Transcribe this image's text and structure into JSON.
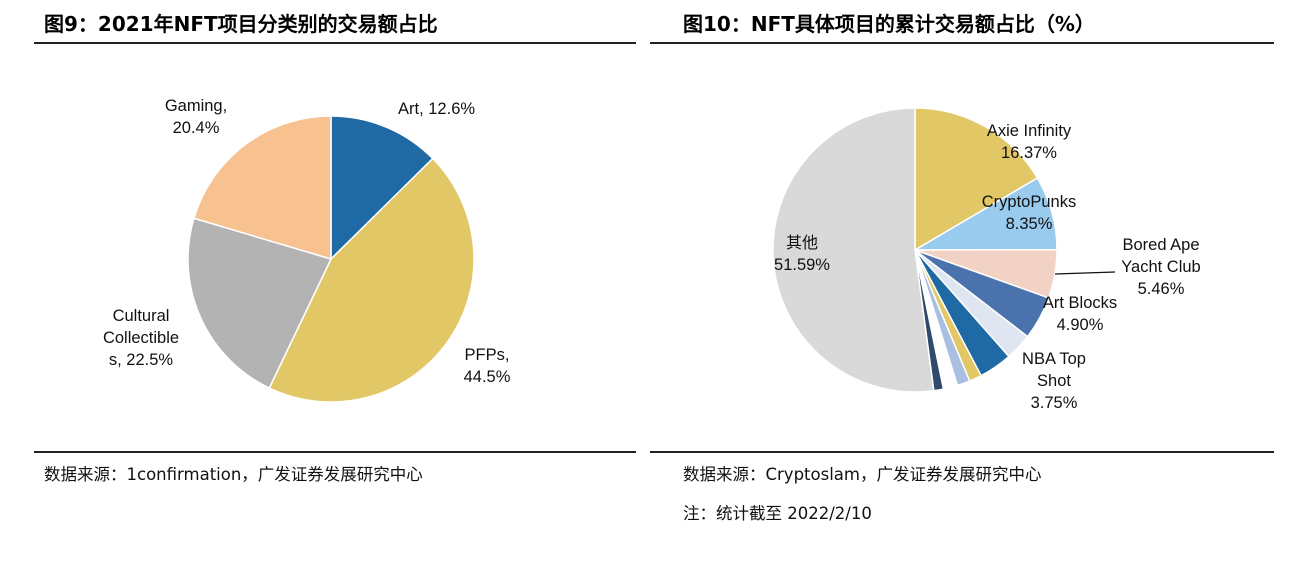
{
  "charts": [
    {
      "title": "图9：2021年NFT项目分类别的交易额占比",
      "source": "数据来源：1confirmation，广发证券发展研究中心"
    },
    {
      "title": "图10：NFT具体项目的累计交易额占比（%）",
      "source": "数据来源：Cryptoslam，广发证券发展研究中心",
      "note": "注：统计截至 2022/2/10"
    }
  ],
  "chart_data": [
    {
      "type": "pie",
      "title": "图9：2021年NFT项目分类别的交易额占比",
      "start_angle_deg": 0,
      "direction": "clockwise",
      "slices": [
        {
          "label_lines": [
            "Art, 12.6%"
          ],
          "value": 12.6,
          "color": "#1f6aa5"
        },
        {
          "label_lines": [
            "PFPs,",
            "44.5%"
          ],
          "value": 44.5,
          "color": "#e2c766"
        },
        {
          "label_lines": [
            "Cultural",
            "Collectible",
            "s, 22.5%"
          ],
          "value": 22.5,
          "color": "#b3b3b3"
        },
        {
          "label_lines": [
            "Gaming,",
            "20.4%"
          ],
          "value": 20.4,
          "color": "#f8c190"
        }
      ]
    },
    {
      "type": "pie",
      "title": "图10：NFT具体项目的累计交易额占比（%）",
      "start_angle_deg": 0,
      "direction": "clockwise",
      "slices": [
        {
          "label_lines": [
            "Axie Infinity",
            "16.37%"
          ],
          "value": 16.37,
          "color": "#e2c766"
        },
        {
          "label_lines": [
            "CryptoPunks",
            "8.35%"
          ],
          "value": 8.35,
          "color": "#99cbee"
        },
        {
          "label_lines": [
            "Bored Ape",
            "Yacht Club",
            "5.46%"
          ],
          "value": 5.46,
          "color": "#f2d2c4"
        },
        {
          "label_lines": [
            "Art Blocks",
            "4.90%"
          ],
          "value": 4.9,
          "color": "#4a72ad"
        },
        {
          "label_lines": [],
          "value": 3.04,
          "color": "#dfe6f2"
        },
        {
          "label_lines": [
            "NBA Top",
            "Shot",
            "3.75%"
          ],
          "value": 3.75,
          "color": "#1f6aa5"
        },
        {
          "label_lines": [],
          "value": 1.4,
          "color": "#e2c766"
        },
        {
          "label_lines": [],
          "value": 1.45,
          "color": "#a9bfe2"
        },
        {
          "label_lines": [],
          "value": 1.6,
          "color": "#ffffff"
        },
        {
          "label_lines": [],
          "value": 1.09,
          "color": "#2f4a6b"
        },
        {
          "label_lines": [
            "其他",
            "51.59%"
          ],
          "value": 51.59,
          "color": "#d9d9d9"
        }
      ]
    }
  ]
}
